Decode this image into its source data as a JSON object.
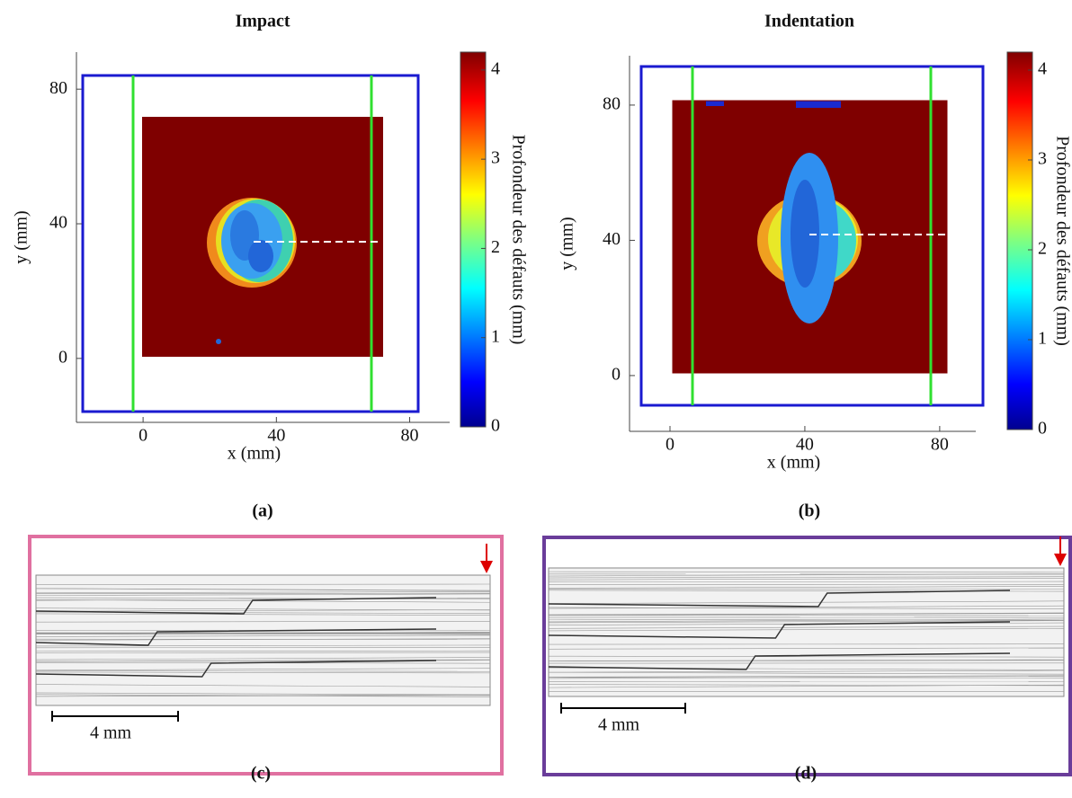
{
  "panels": [
    {
      "title": "Impact",
      "caption": "(a)",
      "x_label": "x (mm)",
      "y_label": "y (mm)",
      "xlim": [
        -20,
        92
      ],
      "ylim": [
        -19,
        91
      ],
      "xticks": [
        0,
        40,
        80
      ],
      "yticks": [
        0,
        40,
        80
      ],
      "colorbar": {
        "label": "Profondeur des défauts (mm)",
        "lim": [
          0,
          4.2
        ],
        "ticks": [
          0,
          1,
          2,
          3,
          4
        ]
      }
    },
    {
      "title": "Indentation",
      "caption": "(b)",
      "x_label": "x (mm)",
      "y_label": "y (mm)",
      "xlim": [
        -12,
        90.7
      ],
      "ylim": [
        -16.5,
        94.6
      ],
      "xticks": [
        0,
        40,
        80
      ],
      "yticks": [
        0,
        40,
        80
      ],
      "colorbar": {
        "label": "Profondeur des défauts (mm)",
        "lim": [
          0,
          4.2
        ],
        "ticks": [
          0,
          1,
          2,
          3,
          4
        ]
      }
    }
  ],
  "micrographs": [
    {
      "caption": "(c)",
      "scale_bar": "4 mm"
    },
    {
      "caption": "(d)",
      "scale_bar": "4 mm"
    }
  ]
}
